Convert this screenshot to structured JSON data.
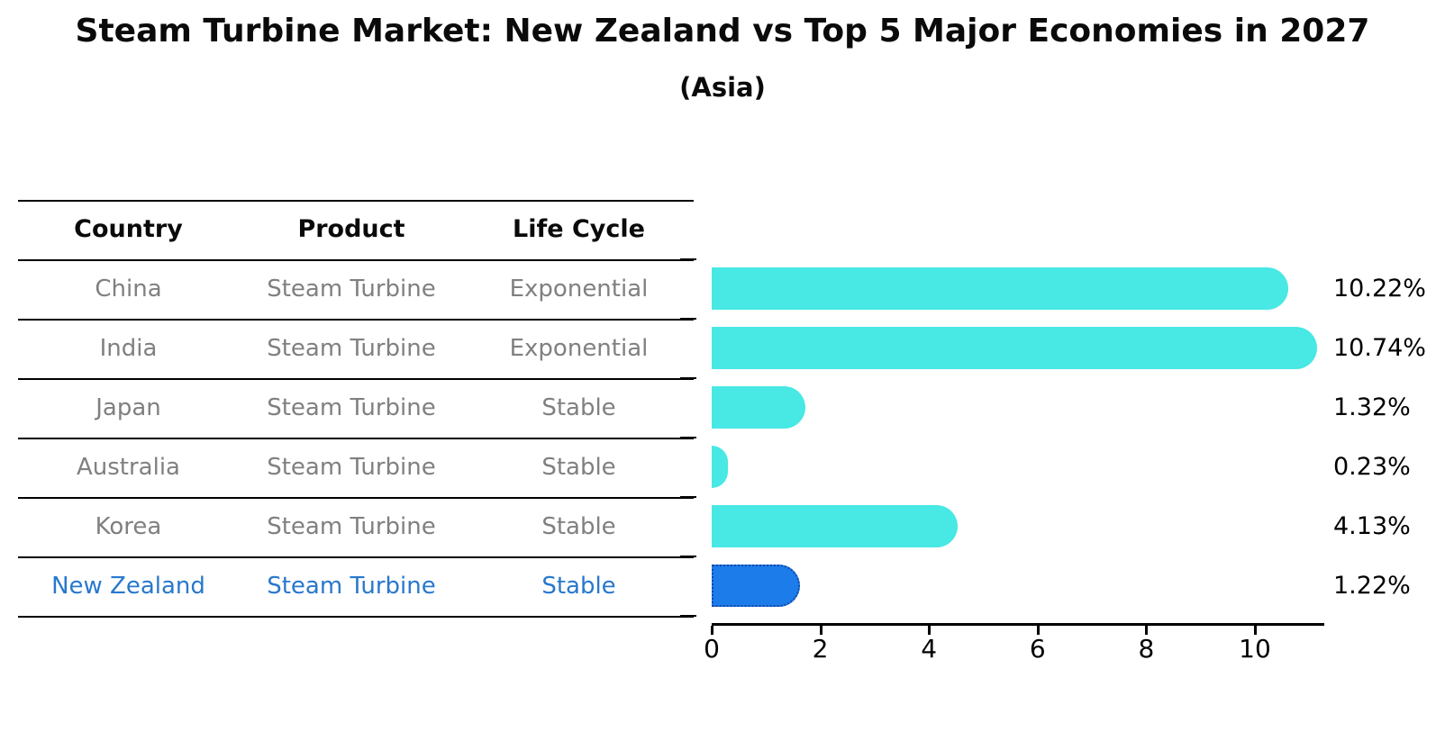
{
  "title": "Steam Turbine Market: New Zealand vs Top 5 Major Economies in 2027",
  "subtitle": "(Asia)",
  "table": {
    "headers": [
      "Country",
      "Product",
      "Life Cycle"
    ],
    "rows": [
      {
        "country": "China",
        "product": "Steam Turbine",
        "life_cycle": "Exponential",
        "highlight": false
      },
      {
        "country": "India",
        "product": "Steam Turbine",
        "life_cycle": "Exponential",
        "highlight": false
      },
      {
        "country": "Japan",
        "product": "Steam Turbine",
        "life_cycle": "Stable",
        "highlight": false
      },
      {
        "country": "Australia",
        "product": "Steam Turbine",
        "life_cycle": "Stable",
        "highlight": false
      },
      {
        "country": "Korea",
        "product": "Steam Turbine",
        "life_cycle": "Stable",
        "highlight": false
      },
      {
        "country": "New Zealand",
        "product": "Steam Turbine",
        "life_cycle": "Stable",
        "highlight": true
      }
    ]
  },
  "chart_data": {
    "type": "bar",
    "orientation": "horizontal",
    "title": "Steam Turbine Market: New Zealand vs Top 5 Major Economies in 2027",
    "subtitle": "(Asia)",
    "categories": [
      "China",
      "India",
      "Japan",
      "Australia",
      "Korea",
      "New Zealand"
    ],
    "values": [
      10.22,
      10.74,
      1.32,
      0.23,
      4.13,
      1.22
    ],
    "value_labels": [
      "10.22%",
      "10.74%",
      "1.32%",
      "0.23%",
      "4.13%",
      "1.22%"
    ],
    "highlight_index": 5,
    "x_ticks": [
      0,
      2,
      4,
      6,
      8,
      10
    ],
    "xlim": [
      0,
      11.3
    ],
    "grid": false,
    "legend": false,
    "xlabel": "",
    "ylabel": ""
  },
  "colors": {
    "bar": "#48e8e4",
    "highlight_bar": "#1c7ce9",
    "highlight_border": "#1347a8",
    "row_text": "#808080",
    "highlight_text": "#2878cd",
    "axis": "#000000"
  }
}
